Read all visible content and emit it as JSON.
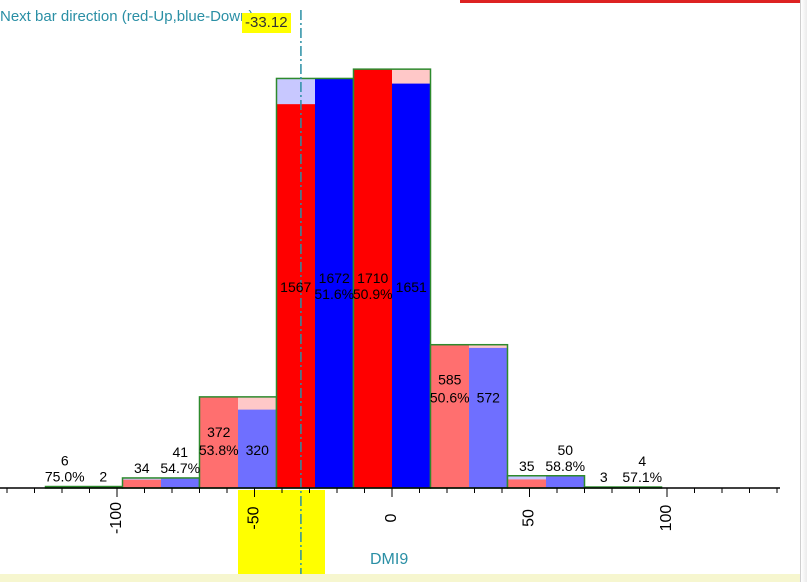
{
  "chart_data": {
    "type": "bar",
    "title": "Next bar direction (red-Up,blue-Down)",
    "xlabel": "DMI9",
    "cursor_value": "-33.12",
    "x_ticks": [
      "-100",
      "-50",
      "0",
      "50",
      "100"
    ],
    "x_tick_values": [
      -100,
      -50,
      0,
      50,
      100
    ],
    "xlim": [
      -142,
      142
    ],
    "ylim": [
      0,
      1780
    ],
    "bin_width": 28,
    "colors": {
      "up": "#ff0000",
      "down": "#0000ff",
      "up_light": "#ff6f6f",
      "down_light": "#6f6fff",
      "up_pale": "#ffc8c8",
      "down_pale": "#c8c8ff",
      "outline": "#2d8a2d",
      "cursor_band": "#ffff00",
      "label_color": "#2a8fa5"
    },
    "bins": [
      {
        "center": -112,
        "up": 6,
        "down": 2,
        "up_pct": "75.0%",
        "up_label": "6",
        "down_label": "2",
        "strong": false
      },
      {
        "center": -84,
        "up": 34,
        "down": 41,
        "up_pct": "",
        "up_label": "34",
        "down_label": "41",
        "down_pct": "54.7%",
        "strong": false
      },
      {
        "center": -56,
        "up": 372,
        "down": 320,
        "up_pct": "53.8%",
        "up_label": "372",
        "down_label": "320",
        "strong": false
      },
      {
        "center": -28,
        "up": 1567,
        "down": 1672,
        "up_label": "1567",
        "down_label": "1672",
        "down_pct": "51.6%",
        "strong": true
      },
      {
        "center": 0,
        "up": 1710,
        "down": 1651,
        "up_label": "1710",
        "up_pct": "50.9%",
        "down_label": "1651",
        "strong": true
      },
      {
        "center": 28,
        "up": 585,
        "down": 572,
        "up_label": "585",
        "up_pct": "50.6%",
        "down_label": "572",
        "strong": false
      },
      {
        "center": 56,
        "up": 35,
        "down": 50,
        "up_label": "35",
        "down_label": "50",
        "down_pct": "58.8%",
        "strong": false
      },
      {
        "center": 84,
        "up": 3,
        "down": 4,
        "up_label": "3",
        "down_label": "4",
        "down_pct": "57.1%",
        "strong": false
      }
    ]
  }
}
